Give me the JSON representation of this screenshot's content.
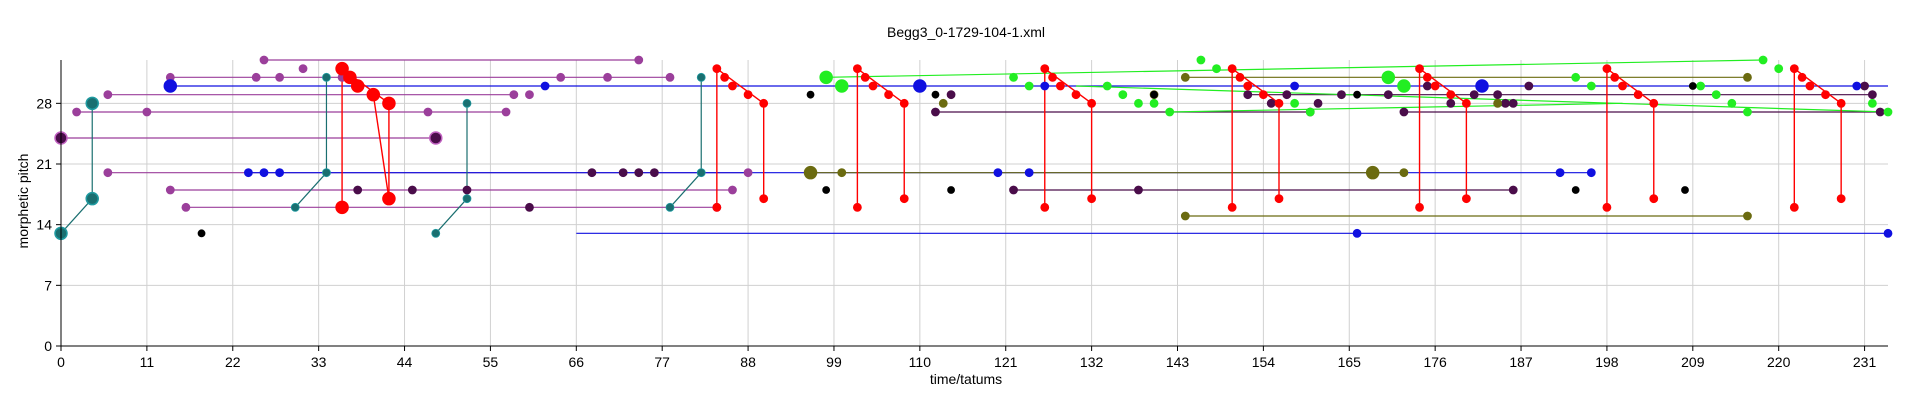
{
  "chart_data": {
    "type": "scatter",
    "title": "Begg3_0-1729-104-1.xml",
    "xlabel": "time/tatums",
    "ylabel": "morphetic pitch",
    "xlim": [
      0,
      234
    ],
    "ylim": [
      0,
      33
    ],
    "x_ticks": [
      "0",
      "11",
      "22",
      "33",
      "44",
      "55",
      "66",
      "77",
      "88",
      "99",
      "110",
      "121",
      "132",
      "143",
      "154",
      "165",
      "176",
      "187",
      "198",
      "209",
      "220",
      "231"
    ],
    "y_ticks": [
      "0",
      "7",
      "14",
      "21",
      "28"
    ],
    "grid": true,
    "colors": {
      "purple": "#9b3f9b",
      "dark_purple": "#4a0d4a",
      "teal": "#1a6f70",
      "blue": "#1010e0",
      "red": "#ff0000",
      "green": "#22ee22",
      "olive": "#6b6b10",
      "black": "#000000"
    },
    "segments": [
      {
        "color": "purple",
        "x1": 26,
        "y1": 33,
        "x2": 74,
        "y2": 33
      },
      {
        "color": "purple",
        "x1": 14,
        "y1": 31,
        "x2": 78,
        "y2": 31
      },
      {
        "color": "purple",
        "x1": 6,
        "y1": 29,
        "x2": 58,
        "y2": 29
      },
      {
        "color": "purple",
        "x1": 2,
        "y1": 27,
        "x2": 57,
        "y2": 27
      },
      {
        "color": "purple",
        "x1": 0,
        "y1": 24,
        "x2": 48,
        "y2": 24
      },
      {
        "color": "purple",
        "x1": 6,
        "y1": 20,
        "x2": 88,
        "y2": 20
      },
      {
        "color": "purple",
        "x1": 14,
        "y1": 18,
        "x2": 86,
        "y2": 18
      },
      {
        "color": "purple",
        "x1": 16,
        "y1": 16,
        "x2": 84,
        "y2": 16
      },
      {
        "color": "blue",
        "x1": 14,
        "y1": 30,
        "x2": 234,
        "y2": 30
      },
      {
        "color": "blue",
        "x1": 24,
        "y1": 20,
        "x2": 196,
        "y2": 20
      },
      {
        "color": "blue",
        "x1": 66,
        "y1": 13,
        "x2": 234,
        "y2": 13
      },
      {
        "color": "dark_purple",
        "x1": 112,
        "y1": 27,
        "x2": 160,
        "y2": 27
      },
      {
        "color": "dark_purple",
        "x1": 122,
        "y1": 18,
        "x2": 186,
        "y2": 18
      },
      {
        "color": "dark_purple",
        "x1": 152,
        "y1": 29,
        "x2": 232,
        "y2": 29
      },
      {
        "color": "dark_purple",
        "x1": 172,
        "y1": 27,
        "x2": 234,
        "y2": 27
      },
      {
        "color": "olive",
        "x1": 96,
        "y1": 20,
        "x2": 172,
        "y2": 20
      },
      {
        "color": "olive",
        "x1": 144,
        "y1": 15,
        "x2": 216,
        "y2": 15
      },
      {
        "color": "olive",
        "x1": 144,
        "y1": 31,
        "x2": 216,
        "y2": 31
      },
      {
        "color": "green",
        "x1": 98,
        "y1": 31,
        "x2": 218,
        "y2": 33
      },
      {
        "color": "green",
        "x1": 130,
        "y1": 30,
        "x2": 234,
        "y2": 27
      },
      {
        "color": "green",
        "x1": 142,
        "y1": 27,
        "x2": 200,
        "y2": 28
      },
      {
        "color": "teal",
        "x1": 0,
        "y1": 13,
        "x2": 4,
        "y2": 17
      },
      {
        "color": "teal",
        "x1": 4,
        "y1": 17,
        "x2": 4,
        "y2": 28
      },
      {
        "color": "teal",
        "x1": 30,
        "y1": 16,
        "x2": 34,
        "y2": 20
      },
      {
        "color": "teal",
        "x1": 34,
        "y1": 20,
        "x2": 34,
        "y2": 31
      },
      {
        "color": "teal",
        "x1": 48,
        "y1": 13,
        "x2": 52,
        "y2": 17
      },
      {
        "color": "teal",
        "x1": 52,
        "y1": 17,
        "x2": 52,
        "y2": 28
      },
      {
        "color": "teal",
        "x1": 78,
        "y1": 16,
        "x2": 82,
        "y2": 20
      },
      {
        "color": "teal",
        "x1": 82,
        "y1": 20,
        "x2": 82,
        "y2": 31
      },
      {
        "color": "red",
        "x1": 36,
        "y1": 32,
        "x2": 42,
        "y2": 28
      },
      {
        "color": "red",
        "x1": 36,
        "y1": 32,
        "x2": 36,
        "y2": 16
      },
      {
        "color": "red",
        "x1": 40,
        "y1": 29,
        "x2": 42,
        "y2": 17
      },
      {
        "color": "red",
        "x1": 42,
        "y1": 28,
        "x2": 42,
        "y2": 17
      },
      {
        "color": "red",
        "x1": 84,
        "y1": 32,
        "x2": 90,
        "y2": 28
      },
      {
        "color": "red",
        "x1": 84,
        "y1": 32,
        "x2": 84,
        "y2": 16
      },
      {
        "color": "red",
        "x1": 90,
        "y1": 28,
        "x2": 90,
        "y2": 17
      },
      {
        "color": "red",
        "x1": 102,
        "y1": 32,
        "x2": 108,
        "y2": 28
      },
      {
        "color": "red",
        "x1": 102,
        "y1": 32,
        "x2": 102,
        "y2": 16
      },
      {
        "color": "red",
        "x1": 108,
        "y1": 28,
        "x2": 108,
        "y2": 17
      },
      {
        "color": "red",
        "x1": 126,
        "y1": 32,
        "x2": 132,
        "y2": 28
      },
      {
        "color": "red",
        "x1": 126,
        "y1": 32,
        "x2": 126,
        "y2": 16
      },
      {
        "color": "red",
        "x1": 132,
        "y1": 28,
        "x2": 132,
        "y2": 17
      },
      {
        "color": "red",
        "x1": 150,
        "y1": 32,
        "x2": 156,
        "y2": 28
      },
      {
        "color": "red",
        "x1": 150,
        "y1": 32,
        "x2": 150,
        "y2": 16
      },
      {
        "color": "red",
        "x1": 156,
        "y1": 28,
        "x2": 156,
        "y2": 17
      },
      {
        "color": "red",
        "x1": 174,
        "y1": 32,
        "x2": 180,
        "y2": 28
      },
      {
        "color": "red",
        "x1": 174,
        "y1": 32,
        "x2": 174,
        "y2": 16
      },
      {
        "color": "red",
        "x1": 180,
        "y1": 28,
        "x2": 180,
        "y2": 17
      },
      {
        "color": "red",
        "x1": 198,
        "y1": 32,
        "x2": 204,
        "y2": 28
      },
      {
        "color": "red",
        "x1": 198,
        "y1": 32,
        "x2": 198,
        "y2": 16
      },
      {
        "color": "red",
        "x1": 204,
        "y1": 28,
        "x2": 204,
        "y2": 17
      },
      {
        "color": "red",
        "x1": 222,
        "y1": 32,
        "x2": 228,
        "y2": 28
      },
      {
        "color": "red",
        "x1": 222,
        "y1": 32,
        "x2": 222,
        "y2": 16
      },
      {
        "color": "red",
        "x1": 228,
        "y1": 28,
        "x2": 228,
        "y2": 17
      }
    ],
    "points": [
      {
        "color": "purple",
        "r": 4,
        "xs": [
          26,
          74,
          14,
          78,
          6,
          58,
          2,
          57,
          6,
          88,
          14,
          86,
          16,
          84,
          25,
          28,
          31,
          36,
          64,
          70,
          47,
          60,
          11
        ],
        "ys": [
          33,
          33,
          31,
          31,
          29,
          29,
          27,
          27,
          20,
          20,
          18,
          18,
          16,
          16,
          31,
          31,
          32,
          31,
          31,
          31,
          27,
          29,
          27
        ]
      },
      {
        "color": "purple",
        "r": 6,
        "xs": [
          0,
          48
        ],
        "ys": [
          24,
          24
        ]
      },
      {
        "color": "dark_purple",
        "r": 4,
        "xs": [
          38,
          45,
          52,
          72,
          74,
          76,
          68,
          60,
          112,
          114,
          160,
          161,
          164,
          122,
          138,
          186,
          152,
          155,
          157,
          170,
          175,
          178,
          184,
          185,
          186,
          188,
          232,
          231,
          233,
          172,
          181
        ],
        "ys": [
          18,
          18,
          18,
          20,
          20,
          20,
          20,
          16,
          27,
          29,
          27,
          28,
          29,
          18,
          18,
          18,
          29,
          28,
          29,
          29,
          30,
          28,
          29,
          28,
          28,
          30,
          29,
          30,
          27,
          27,
          29
        ]
      },
      {
        "color": "teal",
        "r": 6,
        "xs": [
          0,
          4,
          4
        ],
        "ys": [
          13,
          17,
          28
        ]
      },
      {
        "color": "teal",
        "r": 4,
        "xs": [
          30,
          34,
          34,
          48,
          52,
          52,
          78,
          82,
          82
        ],
        "ys": [
          16,
          20,
          31,
          13,
          17,
          28,
          16,
          20,
          31
        ]
      },
      {
        "color": "blue",
        "r": 6,
        "xs": [
          14,
          110,
          182
        ],
        "ys": [
          30,
          30,
          30
        ]
      },
      {
        "color": "blue",
        "r": 4,
        "xs": [
          24,
          26,
          28,
          62,
          120,
          124,
          158,
          192,
          196,
          166,
          230,
          234,
          126
        ],
        "ys": [
          20,
          20,
          20,
          30,
          20,
          20,
          30,
          20,
          20,
          13,
          30,
          13,
          30
        ]
      },
      {
        "color": "red",
        "r": 6,
        "xs": [
          36,
          37,
          38,
          40,
          42,
          36,
          42
        ],
        "ys": [
          32,
          31,
          30,
          29,
          28,
          16,
          17
        ]
      },
      {
        "color": "red",
        "r": 4,
        "xs": [
          84,
          85,
          86,
          88,
          90,
          84,
          90,
          102,
          103,
          104,
          106,
          108,
          102,
          108,
          126,
          127,
          128,
          130,
          132,
          126,
          132,
          150,
          151,
          152,
          154,
          156,
          150,
          156,
          174,
          175,
          176,
          178,
          180,
          174,
          180,
          198,
          199,
          200,
          202,
          204,
          198,
          204,
          222,
          223,
          224,
          226,
          228,
          222,
          228
        ],
        "ys": [
          32,
          31,
          30,
          29,
          28,
          16,
          17,
          32,
          31,
          30,
          29,
          28,
          16,
          17,
          32,
          31,
          30,
          29,
          28,
          16,
          17,
          32,
          31,
          30,
          29,
          28,
          16,
          17,
          32,
          31,
          30,
          29,
          28,
          16,
          17,
          32,
          31,
          30,
          29,
          28,
          16,
          17,
          32,
          31,
          30,
          29,
          28,
          16,
          17
        ]
      },
      {
        "color": "green",
        "r": 6,
        "xs": [
          98,
          100,
          170,
          172
        ],
        "ys": [
          31,
          30,
          31,
          30
        ]
      },
      {
        "color": "green",
        "r": 4,
        "xs": [
          146,
          148,
          122,
          124,
          134,
          136,
          138,
          140,
          142,
          158,
          160,
          194,
          196,
          210,
          212,
          214,
          216,
          218,
          220,
          232,
          234
        ],
        "ys": [
          33,
          32,
          31,
          30,
          30,
          29,
          28,
          28,
          27,
          28,
          27,
          31,
          30,
          30,
          29,
          28,
          27,
          33,
          32,
          28,
          27
        ]
      },
      {
        "color": "olive",
        "r": 6,
        "xs": [
          96,
          168
        ],
        "ys": [
          20,
          20
        ]
      },
      {
        "color": "olive",
        "r": 4,
        "xs": [
          100,
          113,
          140,
          144,
          172,
          216,
          216,
          144,
          184
        ],
        "ys": [
          20,
          28,
          29,
          15,
          20,
          15,
          31,
          31,
          28
        ]
      },
      {
        "color": "black",
        "r": 3.5,
        "xs": [
          18,
          96,
          98,
          114,
          140,
          166,
          194,
          208,
          209,
          112
        ],
        "ys": [
          13,
          29,
          18,
          18,
          29,
          29,
          18,
          18,
          30,
          29
        ]
      }
    ]
  }
}
